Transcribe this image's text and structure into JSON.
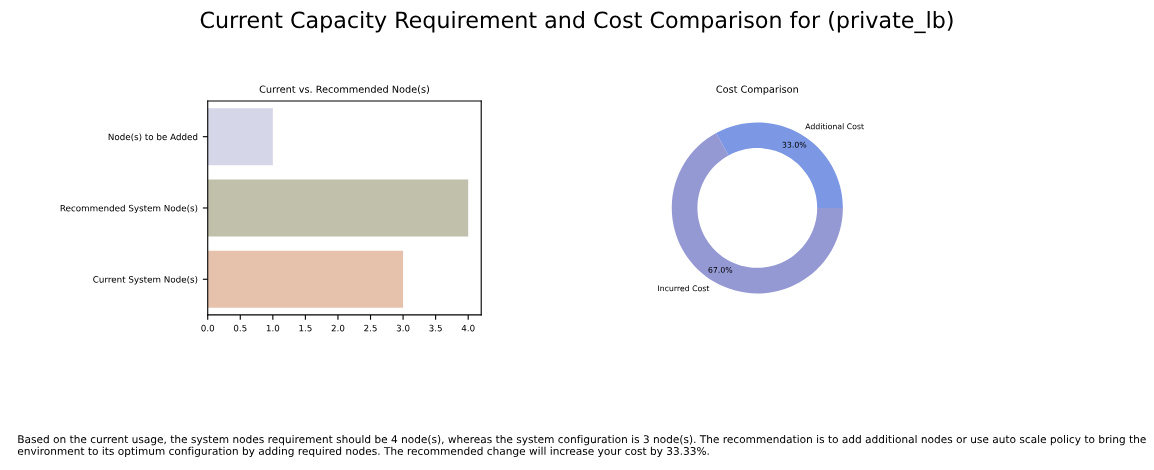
{
  "chart_data": [
    {
      "type": "other",
      "title": "Current Capacity Requirement and Cost Comparison for (private_lb)",
      "annotations": [
        "Based on the current usage, the system nodes requirement should be 4 node(s), whereas the system configuration is 3 node(s). The recommendation is to add additional nodes or use auto scale policy to bring the environment to its optimum configuration by adding required nodes. The recommended change will increase your cost by 33.33%."
      ]
    },
    {
      "type": "bar",
      "title": "Current vs. Recommended Node(s)",
      "orientation": "horizontal",
      "categories": [
        "Node(s) to be Added",
        "Recommended System Node(s)",
        "Current System Node(s)"
      ],
      "values": [
        1,
        4,
        3
      ],
      "colors": [
        "#d5d6e8",
        "#c0c0ab",
        "#e6c2ad"
      ],
      "xlim": [
        0,
        4.2
      ],
      "xticks": [
        {
          "value": 0,
          "label": "0.0"
        },
        {
          "value": 0.5,
          "label": "0.5"
        },
        {
          "value": 1,
          "label": "1.0"
        },
        {
          "value": 1.5,
          "label": "1.5"
        },
        {
          "value": 2,
          "label": "2.0"
        },
        {
          "value": 2.5,
          "label": "2.5"
        },
        {
          "value": 3,
          "label": "3.0"
        },
        {
          "value": 3.5,
          "label": "3.5"
        },
        {
          "value": 4,
          "label": "4.0"
        }
      ]
    },
    {
      "type": "donut",
      "title": "Cost Comparison",
      "categories": [
        "Additional Cost",
        "Incurred Cost"
      ],
      "values": [
        33,
        67
      ],
      "colors": [
        "#7c97e3",
        "#9498d3"
      ],
      "value_labels": [
        "33.0%",
        "67.0%"
      ]
    }
  ]
}
